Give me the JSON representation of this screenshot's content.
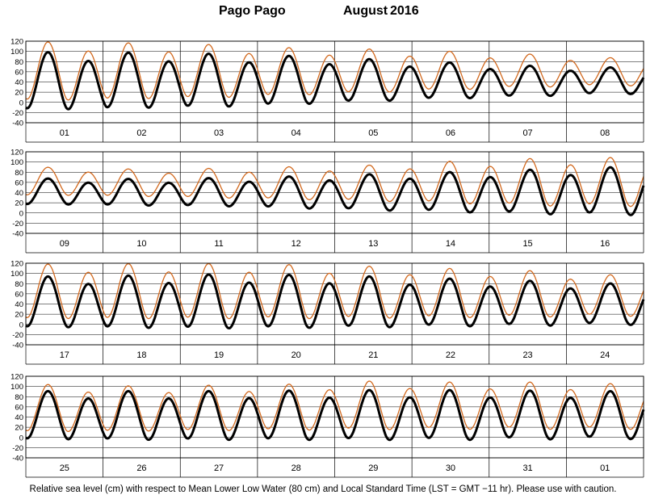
{
  "title": {
    "station": "Pago Pago",
    "month": "August",
    "year": "2016"
  },
  "footnote": "Relative sea level (cm) with respect to Mean Lower Low Water (80 cm) and Local Standard Time (LST = GMT −11 hr). Please use with caution.",
  "colors": {
    "predicted": "#000000",
    "observed": "#d2691e",
    "grid": "#000000"
  },
  "chart_data": {
    "type": "line",
    "ylim": [
      -40,
      120
    ],
    "yticks": [
      -40,
      -20,
      0,
      20,
      40,
      60,
      80,
      100,
      120
    ],
    "grid": true,
    "series": [
      {
        "key": "predicted",
        "style": "thick black line"
      },
      {
        "key": "observed",
        "style": "thin orange line"
      }
    ],
    "panels": [
      {
        "days": [
          "01",
          "02",
          "03",
          "04",
          "05",
          "06",
          "07",
          "08"
        ],
        "predicted": {
          "high_max": [
            95,
            94,
            92,
            88,
            82,
            76,
            70,
            67
          ],
          "low_min": [
            -13,
            -10,
            -8,
            -3,
            3,
            8,
            12,
            17
          ]
        },
        "observed": {
          "high_max": [
            115,
            113,
            110,
            104,
            102,
            98,
            93,
            86
          ],
          "low_min": [
            5,
            8,
            10,
            15,
            20,
            25,
            30,
            33
          ]
        }
      },
      {
        "days": [
          "09",
          "10",
          "11",
          "12",
          "13",
          "14",
          "15",
          "16"
        ],
        "predicted": {
          "high_max": [
            66,
            65,
            67,
            70,
            74,
            78,
            82,
            87
          ],
          "low_min": [
            17,
            15,
            14,
            10,
            6,
            3,
            -1,
            -3
          ]
        },
        "observed": {
          "high_max": [
            88,
            84,
            86,
            89,
            92,
            99,
            104,
            106
          ],
          "low_min": [
            35,
            33,
            30,
            27,
            24,
            20,
            15,
            14
          ]
        }
      },
      {
        "days": [
          "17",
          "18",
          "19",
          "20",
          "21",
          "22",
          "23",
          "24"
        ],
        "predicted": {
          "high_max": [
            91,
            93,
            95,
            94,
            91,
            87,
            83,
            78
          ],
          "low_min": [
            -5,
            -6,
            -7,
            -6,
            -5,
            -3,
            -2,
            0
          ]
        },
        "observed": {
          "high_max": [
            115,
            116,
            116,
            114,
            111,
            107,
            103,
            95
          ],
          "low_min": [
            12,
            12,
            12,
            12,
            13,
            14,
            15,
            17
          ]
        }
      },
      {
        "days": [
          "25",
          "26",
          "27",
          "28",
          "29",
          "30",
          "31",
          "01"
        ],
        "predicted": {
          "high_max": [
            88,
            88,
            88,
            89,
            90,
            90,
            89,
            88
          ],
          "low_min": [
            -3,
            -4,
            -4,
            -4,
            -4,
            -4,
            -3,
            -2
          ]
        },
        "observed": {
          "high_max": [
            101,
            98,
            100,
            102,
            108,
            106,
            106,
            103
          ],
          "low_min": [
            12,
            13,
            14,
            15,
            16,
            17,
            17,
            17
          ]
        }
      }
    ]
  }
}
